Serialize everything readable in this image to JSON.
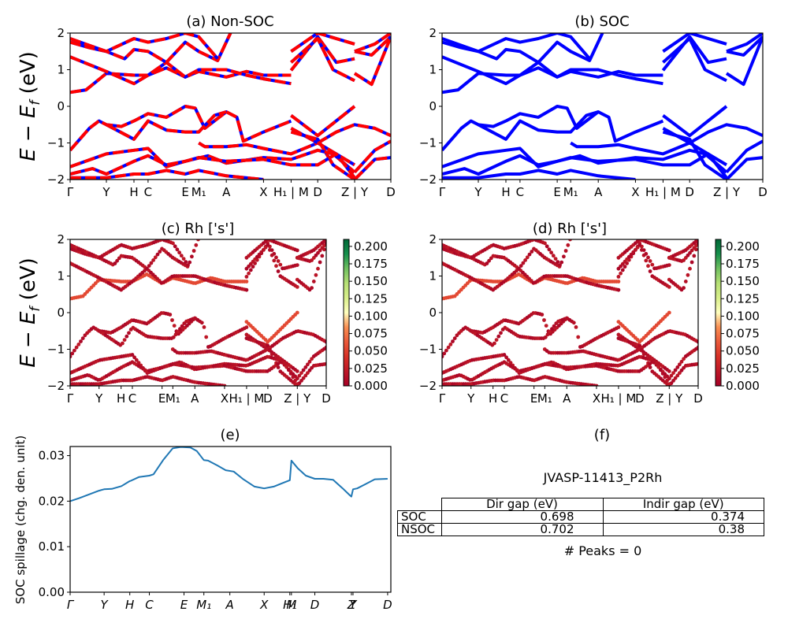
{
  "figure": {
    "ylabel_band": "E − E_f (eV)",
    "kpath_labels": [
      "Γ",
      "Y",
      "H",
      "C",
      "E",
      "M₁",
      "A",
      "X",
      "H₁ | M",
      "D",
      "Z | Y",
      "D"
    ],
    "kpath_positions": [
      0,
      0.113,
      0.199,
      0.243,
      0.359,
      0.401,
      0.487,
      0.603,
      0.689,
      0.772,
      0.887,
      1.0
    ]
  },
  "chart_data": [
    {
      "id": "a",
      "type": "line",
      "title": "(a) Non-SOC",
      "xlabel": "",
      "ylabel": "E − E_f (eV)",
      "ylim": [
        -2,
        2
      ],
      "yticks": [
        "2",
        "1",
        "0",
        "−1",
        "−2"
      ],
      "ytick_values": [
        2,
        1,
        0,
        -1,
        -2
      ],
      "xticks": [
        "Γ",
        "Y",
        "H",
        "C",
        "E",
        "M₁",
        "A",
        "X",
        "H₁ | M",
        "D",
        "Z | Y",
        "D"
      ],
      "series_colors": {
        "non_soc": "#ff0000",
        "soc": "#0000ff"
      },
      "style": "red bands dashed over blue (SOC overlay)",
      "conduction_band_min_eV": 0.38,
      "valence_band_max_eV": 0.0
    },
    {
      "id": "b",
      "type": "line",
      "title": "(b) SOC",
      "ylim": [
        -2,
        2
      ],
      "yticks": [
        "2",
        "1",
        "0",
        "−1",
        "−2"
      ],
      "ytick_values": [
        2,
        1,
        0,
        -1,
        -2
      ],
      "xticks": [
        "Γ",
        "Y",
        "H",
        "C",
        "E",
        "M₁",
        "A",
        "X",
        "H₁ | M",
        "D",
        "Z | Y",
        "D"
      ],
      "series_colors": {
        "soc": "#0000ff"
      },
      "conduction_band_min_eV": 0.374,
      "valence_band_max_eV": 0.0
    },
    {
      "id": "c",
      "type": "scatter",
      "title": "(c)  Rh ['s']",
      "ylim": [
        -2,
        2
      ],
      "yticks": [
        "2",
        "1",
        "0",
        "−1",
        "−2"
      ],
      "ytick_values": [
        2,
        1,
        0,
        -1,
        -2
      ],
      "xticks": [
        "Γ",
        "Y",
        "H",
        "C",
        "E",
        "M₁",
        "A",
        "X",
        "H₁ | M",
        "D",
        "Z | Y",
        "D"
      ],
      "colorbar": {
        "cmap": "RdYlGn",
        "range": [
          0,
          0.21
        ],
        "ticks": [
          "0.200",
          "0.175",
          "0.150",
          "0.125",
          "0.100",
          "0.075",
          "0.050",
          "0.025",
          "0.000"
        ],
        "tick_values": [
          0.2,
          0.175,
          0.15,
          0.125,
          0.1,
          0.075,
          0.05,
          0.025,
          0.0
        ]
      }
    },
    {
      "id": "d",
      "type": "scatter",
      "title": "(d) Rh ['s']",
      "ylim": [
        -2,
        2
      ],
      "yticks": [
        "2",
        "1",
        "0",
        "−1",
        "−2"
      ],
      "ytick_values": [
        2,
        1,
        0,
        -1,
        -2
      ],
      "xticks": [
        "Γ",
        "Y",
        "H",
        "C",
        "E",
        "M₁",
        "A",
        "X",
        "H₁ | M",
        "D",
        "Z | Y",
        "D"
      ],
      "colorbar": {
        "cmap": "RdYlGn",
        "range": [
          0,
          0.21
        ],
        "ticks": [
          "0.200",
          "0.175",
          "0.150",
          "0.125",
          "0.100",
          "0.075",
          "0.050",
          "0.025",
          "0.000"
        ],
        "tick_values": [
          0.2,
          0.175,
          0.15,
          0.125,
          0.1,
          0.075,
          0.05,
          0.025,
          0.0
        ]
      }
    },
    {
      "id": "e",
      "type": "line",
      "title": "(e)",
      "xlabel": "",
      "ylabel": "SOC spillage (chg. den. unit)",
      "ylim": [
        0,
        0.032
      ],
      "yticks": [
        "0.03",
        "0.02",
        "0.01",
        "0.00"
      ],
      "ytick_values": [
        0.03,
        0.02,
        0.01,
        0.0
      ],
      "xticks": [
        "Γ",
        "Y",
        "H",
        "C",
        "E",
        "M₁",
        "A",
        "X",
        "H₁",
        "M",
        "D",
        "Z",
        "Y",
        "D"
      ],
      "xtick_positions": [
        0,
        0.106,
        0.186,
        0.247,
        0.355,
        0.417,
        0.498,
        0.605,
        0.685,
        0.69,
        0.763,
        0.877,
        0.882,
        0.99
      ],
      "color": "#1f77b4",
      "x": [
        0,
        0.03,
        0.06,
        0.09,
        0.106,
        0.13,
        0.16,
        0.186,
        0.19,
        0.215,
        0.247,
        0.26,
        0.29,
        0.32,
        0.345,
        0.375,
        0.395,
        0.417,
        0.43,
        0.46,
        0.485,
        0.51,
        0.54,
        0.575,
        0.605,
        0.635,
        0.66,
        0.685,
        0.69,
        0.71,
        0.735,
        0.763,
        0.79,
        0.82,
        0.85,
        0.872,
        0.877,
        0.882,
        0.895,
        0.92,
        0.95,
        0.99
      ],
      "y": [
        0.02,
        0.0207,
        0.0215,
        0.0223,
        0.0226,
        0.0227,
        0.0233,
        0.0244,
        0.0245,
        0.0253,
        0.0256,
        0.0259,
        0.029,
        0.0316,
        0.0319,
        0.0318,
        0.031,
        0.029,
        0.0289,
        0.0278,
        0.0268,
        0.0265,
        0.0248,
        0.0232,
        0.0228,
        0.0232,
        0.0239,
        0.0246,
        0.0289,
        0.0272,
        0.0256,
        0.0249,
        0.0249,
        0.0247,
        0.0228,
        0.0213,
        0.021,
        0.0226,
        0.0228,
        0.0237,
        0.0248,
        0.0249
      ]
    },
    {
      "id": "f",
      "type": "table",
      "title": "(f)",
      "subtitle": "JVASP-11413_P2Rh",
      "columns": [
        "",
        "Dir gap (eV)",
        "Indir gap (eV)"
      ],
      "rows": [
        [
          "SOC",
          "0.698",
          "0.374"
        ],
        [
          "NSOC",
          "0.702",
          "0.38"
        ]
      ],
      "footer": "# Peaks = 0"
    }
  ]
}
